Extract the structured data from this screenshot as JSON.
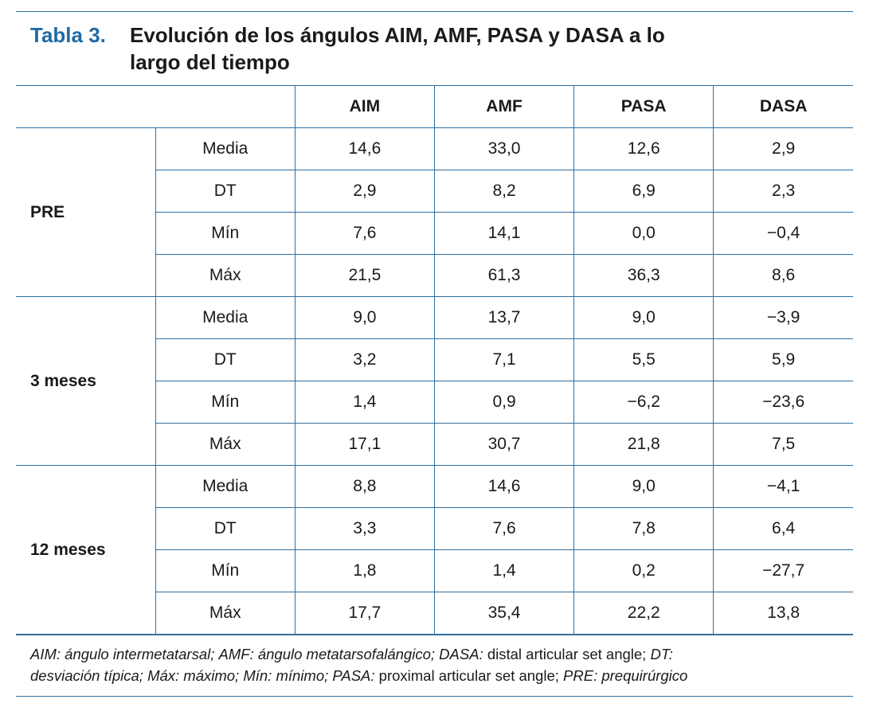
{
  "title": {
    "label": "Tabla 3.",
    "text": "Evolución de los ángulos AIM, AMF, PASA y DASA a lo largo del tiempo"
  },
  "colors": {
    "rule": "#2f6fa0",
    "label": "#1f6aa5"
  },
  "table": {
    "headers": [
      "",
      "",
      "AIM",
      "AMF",
      "PASA",
      "DASA"
    ],
    "groups": [
      {
        "label": "PRE",
        "rows": [
          {
            "stat": "Media",
            "values": [
              "14,6",
              "33,0",
              "12,6",
              "2,9"
            ]
          },
          {
            "stat": "DT",
            "values": [
              "2,9",
              "8,2",
              "6,9",
              "2,3"
            ]
          },
          {
            "stat": "Mín",
            "values": [
              "7,6",
              "14,1",
              "0,0",
              "−0,4"
            ]
          },
          {
            "stat": "Máx",
            "values": [
              "21,5",
              "61,3",
              "36,3",
              "8,6"
            ]
          }
        ]
      },
      {
        "label": "3 meses",
        "rows": [
          {
            "stat": "Media",
            "values": [
              "9,0",
              "13,7",
              "9,0",
              "−3,9"
            ]
          },
          {
            "stat": "DT",
            "values": [
              "3,2",
              "7,1",
              "5,5",
              "5,9"
            ]
          },
          {
            "stat": "Mín",
            "values": [
              "1,4",
              "0,9",
              "−6,2",
              "−23,6"
            ]
          },
          {
            "stat": "Máx",
            "values": [
              "17,1",
              "30,7",
              "21,8",
              "7,5"
            ]
          }
        ]
      },
      {
        "label": "12 meses",
        "rows": [
          {
            "stat": "Media",
            "values": [
              "8,8",
              "14,6",
              "9,0",
              "−4,1"
            ]
          },
          {
            "stat": "DT",
            "values": [
              "3,3",
              "7,6",
              "7,8",
              "6,4"
            ]
          },
          {
            "stat": "Mín",
            "values": [
              "1,8",
              "1,4",
              "0,2",
              "−27,7"
            ]
          },
          {
            "stat": "Máx",
            "values": [
              "17,7",
              "35,4",
              "22,2",
              "13,8"
            ]
          }
        ]
      }
    ]
  },
  "footnote": {
    "aim_abbr": "AIM:",
    "aim_def": "ángulo intermetatarsal;",
    "amf_abbr": "AMF:",
    "amf_def": "ángulo metatarsofalángico;",
    "dasa_abbr": "DASA:",
    "dasa_def": "distal articular set angle;",
    "dt_abbr": "DT:",
    "dt_def": "desviación típica;",
    "max_abbr": "Máx:",
    "max_def": "máximo;",
    "min_abbr": "Mín:",
    "min_def": "mínimo;",
    "pasa_abbr": "PASA:",
    "pasa_def": "proximal articular set angle;",
    "pre_abbr": "PRE:",
    "pre_def": "prequirúrgico"
  }
}
